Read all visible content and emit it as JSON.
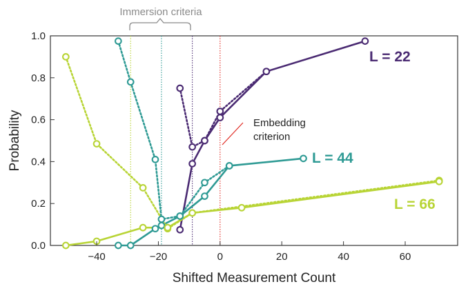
{
  "chart_data": {
    "type": "line",
    "xlabel": "Shifted Measurement Count",
    "ylabel": "Probability",
    "xlim": [
      -55,
      77
    ],
    "ylim": [
      0,
      1.0
    ],
    "xticks": [
      -40,
      -20,
      0,
      20,
      40,
      60
    ],
    "yticks": [
      0.0,
      0.2,
      0.4,
      0.6,
      0.8,
      1.0
    ],
    "xtick_labels": [
      "−40",
      "−20",
      "0",
      "20",
      "40",
      "60"
    ],
    "ytick_labels": [
      "0.0",
      "0.2",
      "0.4",
      "0.6",
      "0.8",
      "1.0"
    ],
    "series": [
      {
        "name": "L = 22",
        "label": "L = 22",
        "color": "#4a2a72",
        "solid": [
          [
            -13,
            0.075
          ],
          [
            -9,
            0.39
          ],
          [
            -5,
            0.5
          ],
          [
            0,
            0.61
          ],
          [
            15,
            0.83
          ],
          [
            47,
            0.975
          ]
        ],
        "dotted": [
          [
            -13,
            0.75
          ],
          [
            -9,
            0.47
          ],
          [
            -5,
            0.5
          ],
          [
            0,
            0.64
          ],
          [
            15,
            0.83
          ]
        ]
      },
      {
        "name": "L = 44",
        "label": "L = 44",
        "color": "#2e9a94",
        "solid": [
          [
            -33,
            0.0
          ],
          [
            -29,
            0.0
          ],
          [
            -21,
            0.08
          ],
          [
            -19,
            0.095
          ],
          [
            -13,
            0.14
          ],
          [
            -5,
            0.235
          ],
          [
            3,
            0.38
          ],
          [
            27,
            0.415
          ]
        ],
        "dotted": [
          [
            -33,
            0.975
          ],
          [
            -29,
            0.78
          ],
          [
            -21,
            0.41
          ],
          [
            -19,
            0.125
          ],
          [
            -13,
            0.14
          ],
          [
            -5,
            0.3
          ],
          [
            3,
            0.38
          ]
        ]
      },
      {
        "name": "L = 66",
        "label": "L = 66",
        "color": "#b8d435",
        "solid": [
          [
            -50,
            0.0
          ],
          [
            -40,
            0.02
          ],
          [
            -25,
            0.085
          ],
          [
            -17,
            0.085
          ],
          [
            -9,
            0.155
          ],
          [
            7,
            0.18
          ],
          [
            71,
            0.305
          ]
        ],
        "dotted": [
          [
            -50,
            0.9
          ],
          [
            -40,
            0.485
          ],
          [
            -25,
            0.275
          ],
          [
            -17,
            0.08
          ],
          [
            -9,
            0.155
          ],
          [
            71,
            0.31
          ]
        ]
      }
    ],
    "vertical_lines": [
      {
        "x": -29,
        "color": "#b8d435",
        "group": "immersion"
      },
      {
        "x": -19,
        "color": "#2e9a94",
        "group": "immersion"
      },
      {
        "x": -9,
        "color": "#4a2a72",
        "group": "immersion"
      },
      {
        "x": 0,
        "color": "#e0261e",
        "group": "embedding"
      }
    ],
    "annotations": {
      "immersion": "Immersion criteria",
      "embedding_line1": "Embedding",
      "embedding_line2": "criterion"
    }
  }
}
